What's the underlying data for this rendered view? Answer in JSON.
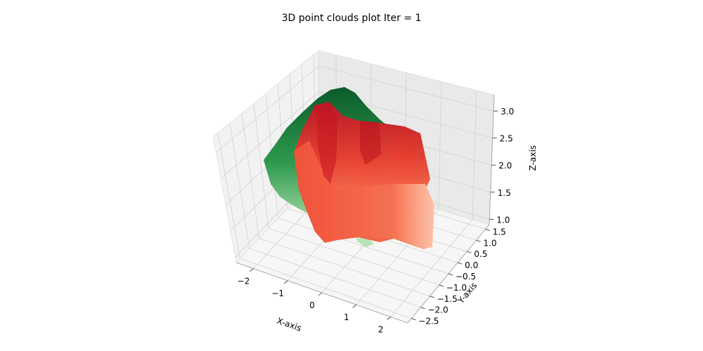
{
  "chart_data": {
    "type": "scatter",
    "subtype": "3d-surface-point-cloud",
    "title": "3D point clouds plot Iter = 1",
    "xlabel": "X-axis",
    "ylabel": "Y-axis",
    "zlabel": "Z-axis",
    "xlim": [
      -2.5,
      2.5
    ],
    "ylim": [
      -2.7,
      1.7
    ],
    "zlim": [
      0.9,
      3.3
    ],
    "xticks": [
      "−2",
      "−1",
      "0",
      "1",
      "2"
    ],
    "xtick_values": [
      -2,
      -1,
      0,
      1,
      2
    ],
    "yticks": [
      "−2.5",
      "−2.0",
      "−1.5",
      "−1.0",
      "−0.5",
      "0.0",
      "0.5",
      "1.0",
      "1.5"
    ],
    "ytick_values": [
      -2.5,
      -2.0,
      -1.5,
      -1.0,
      -0.5,
      0.0,
      0.5,
      1.0,
      1.5
    ],
    "zticks": [
      "1.0",
      "1.5",
      "2.0",
      "2.5",
      "3.0"
    ],
    "ztick_values": [
      1.0,
      1.5,
      2.0,
      2.5,
      3.0
    ],
    "grid": true,
    "series": [
      {
        "colormap": "Greens",
        "color": "#1e8a44"
      },
      {
        "colormap": "Reds",
        "color": "#e8402c"
      }
    ]
  }
}
